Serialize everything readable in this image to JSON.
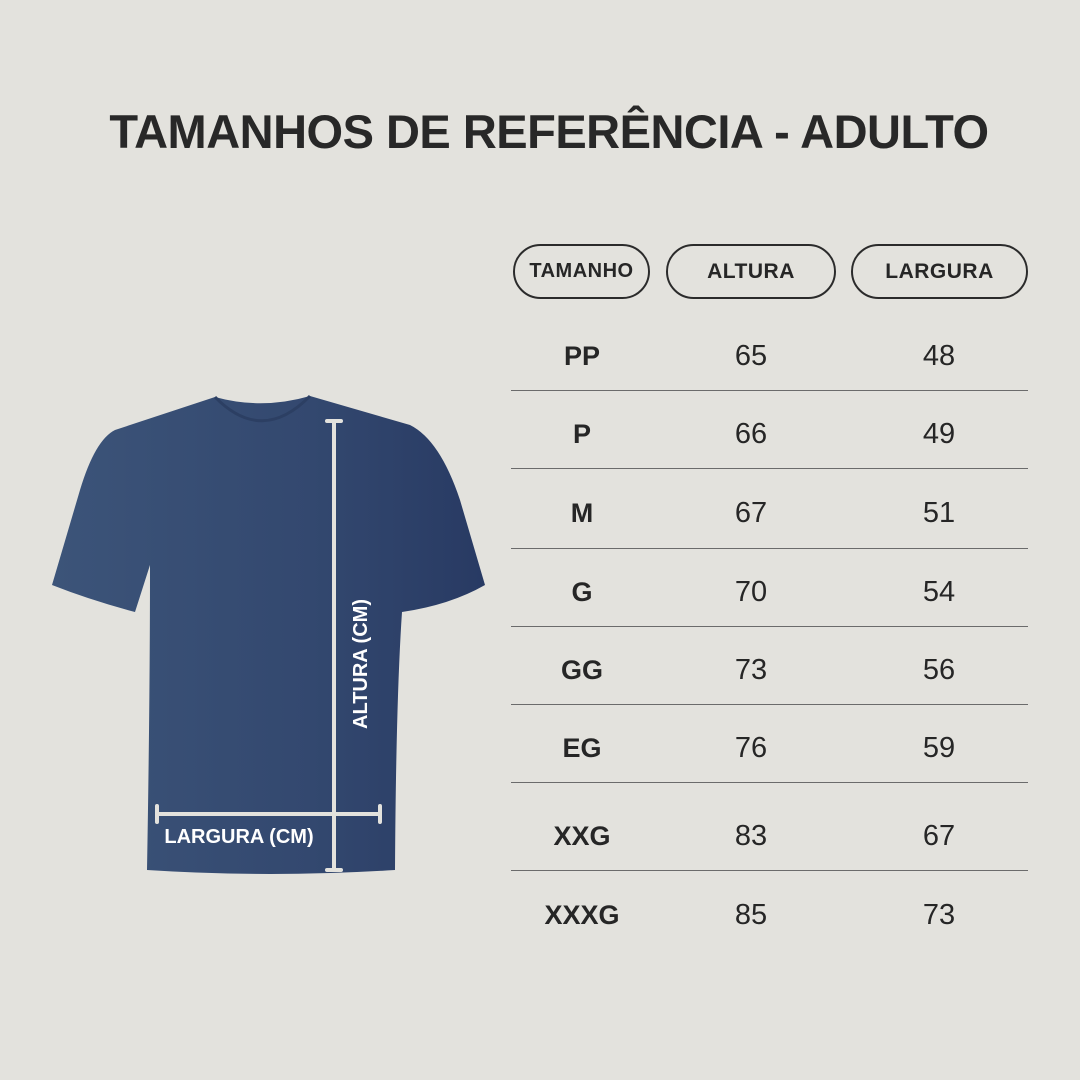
{
  "title": "TAMANHOS DE REFERÊNCIA - ADULTO",
  "colors": {
    "background": "#e3e2dd",
    "shirt": "#34496f",
    "measure_lines": "#e3e2dd",
    "text": "#282828"
  },
  "shirt": {
    "height_label": "ALTURA (CM)",
    "width_label": "LARGURA (CM)"
  },
  "table": {
    "headers": [
      "TAMANHO",
      "ALTURA",
      "LARGURA"
    ],
    "rows": [
      {
        "size": "PP",
        "altura": "65",
        "largura": "48"
      },
      {
        "size": "P",
        "altura": "66",
        "largura": "49"
      },
      {
        "size": "M",
        "altura": "67",
        "largura": "51"
      },
      {
        "size": "G",
        "altura": "70",
        "largura": "54"
      },
      {
        "size": "GG",
        "altura": "73",
        "largura": "56"
      },
      {
        "size": "EG",
        "altura": "76",
        "largura": "59"
      },
      {
        "size": "XXG",
        "altura": "83",
        "largura": "67"
      },
      {
        "size": "XXXG",
        "altura": "85",
        "largura": "73"
      }
    ]
  }
}
